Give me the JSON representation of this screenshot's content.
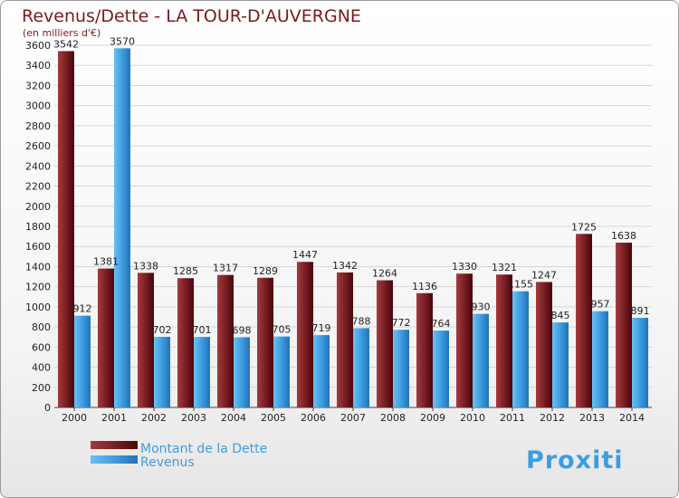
{
  "chart_data": {
    "type": "bar",
    "title": "Revenus/Dette - LA TOUR-D'AUVERGNE",
    "subtitle": "(en milliers d'€)",
    "categories": [
      "2000",
      "2001",
      "2002",
      "2003",
      "2004",
      "2005",
      "2006",
      "2007",
      "2008",
      "2009",
      "2010",
      "2011",
      "2012",
      "2013",
      "2014"
    ],
    "series": [
      {
        "name": "Montant de la Dette",
        "color": "#7a1a1f",
        "values": [
          3542,
          1381,
          1338,
          1285,
          1317,
          1289,
          1447,
          1342,
          1264,
          1136,
          1330,
          1321,
          1247,
          1725,
          1638
        ]
      },
      {
        "name": "Revenus",
        "color": "#3d9de0",
        "values": [
          912,
          3570,
          702,
          701,
          698,
          705,
          719,
          788,
          772,
          764,
          930,
          1155,
          845,
          957,
          891
        ]
      }
    ],
    "ylim": [
      0,
      3600
    ],
    "ytick_step": 200,
    "grid": true,
    "legend": "bottom-left"
  },
  "logo": {
    "text": "Proxiti"
  }
}
